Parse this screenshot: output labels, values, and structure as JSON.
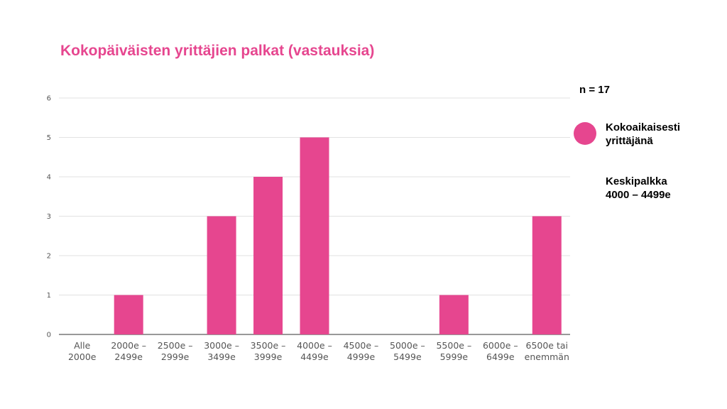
{
  "title": "Kokopäiväisten yrittäjien palkat (vastauksia)",
  "n_label": "n = 17",
  "legend": {
    "label_line1": "Kokoaikaisesti",
    "label_line2": "yrittäjänä"
  },
  "average": {
    "title": "Keskipalkka",
    "value": "4000 – 4499e"
  },
  "colors": {
    "accent": "#e6468f",
    "title": "#e6468f"
  },
  "chart_data": {
    "type": "bar",
    "categories": [
      [
        "Alle",
        "2000e"
      ],
      [
        "2000e –",
        "2499e"
      ],
      [
        "2500e –",
        "2999e"
      ],
      [
        "3000e –",
        "3499e"
      ],
      [
        "3500e –",
        "3999e"
      ],
      [
        "4000e –",
        "4499e"
      ],
      [
        "4500e –",
        "4999e"
      ],
      [
        "5000e –",
        "5499e"
      ],
      [
        "5500e –",
        "5999e"
      ],
      [
        "6000e –",
        "6499e"
      ],
      [
        "6500e tai",
        "enemmän"
      ]
    ],
    "series": [
      {
        "name": "Kokoaikaisesti yrittäjänä",
        "values": [
          0,
          1,
          0,
          3,
          4,
          5,
          0,
          0,
          1,
          0,
          3
        ]
      }
    ],
    "ylim": [
      0,
      6
    ],
    "yticks": [
      0,
      1,
      2,
      3,
      4,
      5,
      6
    ],
    "grid": true,
    "legend_position": "right"
  }
}
